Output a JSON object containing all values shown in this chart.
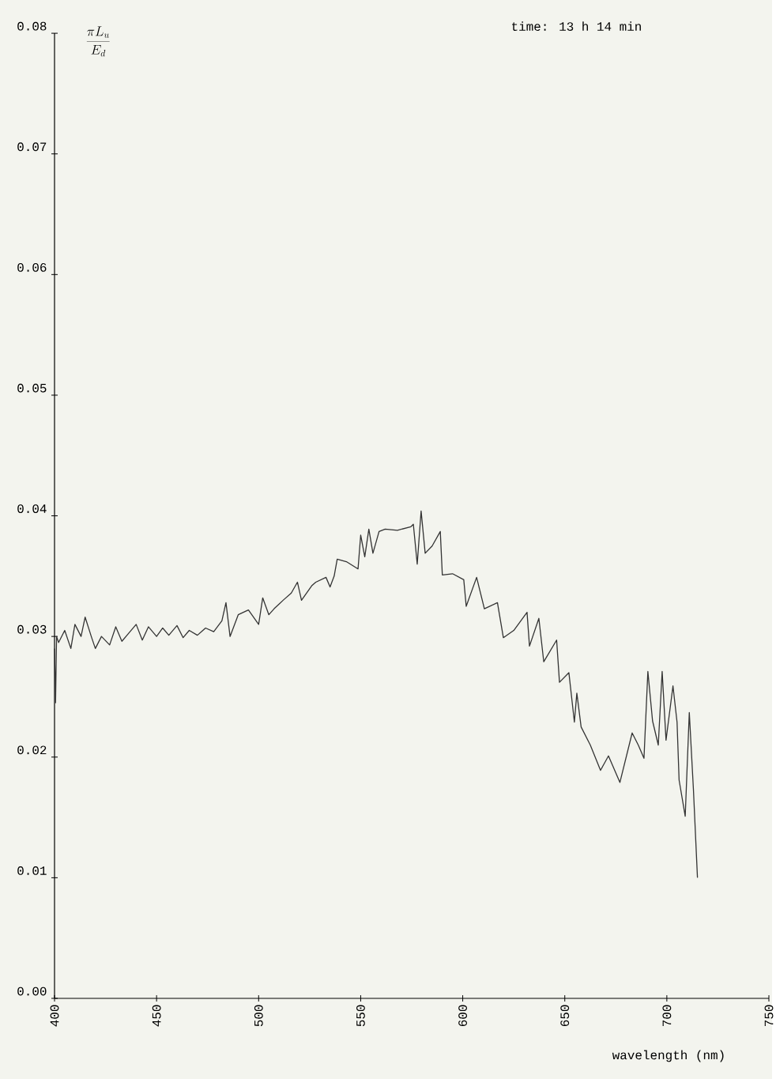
{
  "chart_data": {
    "type": "line",
    "ylabel": "\\frac{\\pi L_{u}}{E_{d}}",
    "xlabel": "wavelength (nm)",
    "annotations": [
      "time:  13 h  14 min"
    ],
    "xlim": [
      400,
      750
    ],
    "xticks": [
      400,
      450,
      500,
      550,
      600,
      650,
      700,
      750
    ],
    "ylim": [
      0,
      0.08
    ],
    "yticks": [
      {
        "value": 0,
        "label": "0.00"
      },
      {
        "value": 0.01,
        "label": "0.01"
      },
      {
        "value": 0.02,
        "label": "0.02"
      },
      {
        "value": 0.03,
        "label": "0.03"
      },
      {
        "value": 0.04,
        "label": "0.04"
      },
      {
        "value": 0.05,
        "label": "0.05"
      },
      {
        "value": 0.06,
        "label": "0.06"
      },
      {
        "value": 0.07,
        "label": "0.07"
      },
      {
        "value": 0.08,
        "label": "0.08"
      }
    ],
    "marker": "none",
    "line_style": "solid",
    "series": [
      {
        "color": "#333333",
        "x": [
          400,
          400.5,
          401,
          402,
          405,
          408,
          410,
          413,
          415,
          418,
          420,
          423,
          427,
          430,
          433,
          436,
          440,
          443,
          446,
          450,
          453,
          456,
          460,
          463,
          466,
          470,
          474,
          478,
          482,
          484,
          486,
          490,
          495,
          500,
          502,
          505,
          507.6,
          512,
          516,
          519,
          521,
          526,
          528,
          533,
          535,
          537,
          538.5,
          543,
          548.7,
          550,
          552,
          554,
          556,
          559,
          562,
          568,
          574.6,
          575.8,
          577.7,
          579.6,
          581.6,
          585,
          589,
          590,
          595,
          600.5,
          601.7,
          606.8,
          610.6,
          617,
          619.9,
          625,
          631.5,
          632.7,
          637.3,
          639.7,
          646,
          647.4,
          652,
          654.7,
          655.9,
          658,
          662.5,
          667.5,
          671.4,
          677,
          683,
          686,
          688.8,
          690.7,
          693,
          695.8,
          697.7,
          699.6,
          703,
          705,
          706,
          709,
          711,
          713,
          715
        ],
        "values": [
          0.029,
          0.0245,
          0.03,
          0.0295,
          0.0305,
          0.029,
          0.031,
          0.03,
          0.0316,
          0.03,
          0.029,
          0.03,
          0.0293,
          0.0308,
          0.0296,
          0.0302,
          0.031,
          0.0297,
          0.0308,
          0.03,
          0.0307,
          0.0301,
          0.0309,
          0.0299,
          0.0305,
          0.0301,
          0.0307,
          0.0304,
          0.0313,
          0.0328,
          0.03,
          0.0318,
          0.0322,
          0.031,
          0.0332,
          0.0318,
          0.0323,
          0.033,
          0.0336,
          0.0345,
          0.033,
          0.0342,
          0.0345,
          0.0349,
          0.0341,
          0.035,
          0.0364,
          0.0362,
          0.0356,
          0.0384,
          0.0366,
          0.0389,
          0.0369,
          0.0387,
          0.0389,
          0.0388,
          0.0391,
          0.0393,
          0.036,
          0.0404,
          0.0369,
          0.0375,
          0.0387,
          0.0351,
          0.0352,
          0.0347,
          0.0325,
          0.0349,
          0.0323,
          0.0328,
          0.0299,
          0.0305,
          0.032,
          0.0292,
          0.0315,
          0.0279,
          0.0297,
          0.0262,
          0.027,
          0.0229,
          0.0253,
          0.0225,
          0.021,
          0.0189,
          0.0201,
          0.0179,
          0.022,
          0.021,
          0.0199,
          0.0271,
          0.023,
          0.021,
          0.0271,
          0.0214,
          0.0259,
          0.0229,
          0.0181,
          0.0151,
          0.0237,
          0.0174,
          0.01
        ]
      }
    ]
  }
}
